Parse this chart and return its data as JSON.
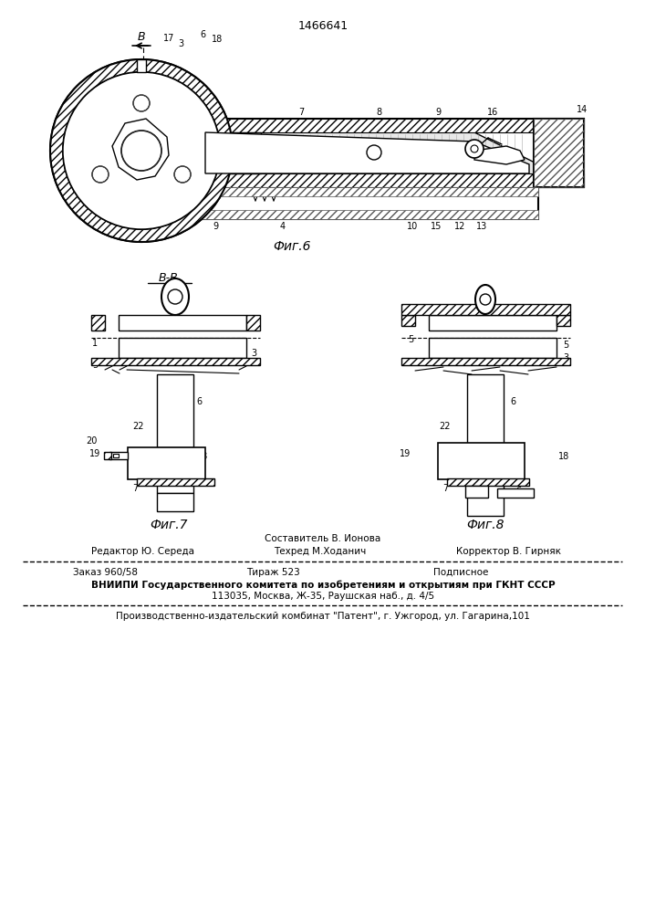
{
  "patent_number": "1466641",
  "bg": "#ffffff",
  "lc": "#000000",
  "fig6_caption": "Фиг.6",
  "fig7_caption": "Фиг.7",
  "fig8_caption": "Фиг.8",
  "footer_composer": "Составитель В. Ионова",
  "footer_editor": "Редактор Ю. Середа",
  "footer_techred": "Техред М.Ходанич",
  "footer_corrector": "Корректор В. Гирняк",
  "footer_order": "Заказ 960/58",
  "footer_tirazh": "Тираж 523",
  "footer_podpisnoe": "Подписное",
  "footer_vniip": "ВНИИПИ Государственного комитета по изобретениям и открытиям при ГКНТ СССР",
  "footer_address": "113035, Москва, Ж-35, Раушская наб., д. 4/5",
  "footer_publisher": "Производственно-издательский комбинат \"Патент\", г. Ужгород, ул. Гагарина,101"
}
